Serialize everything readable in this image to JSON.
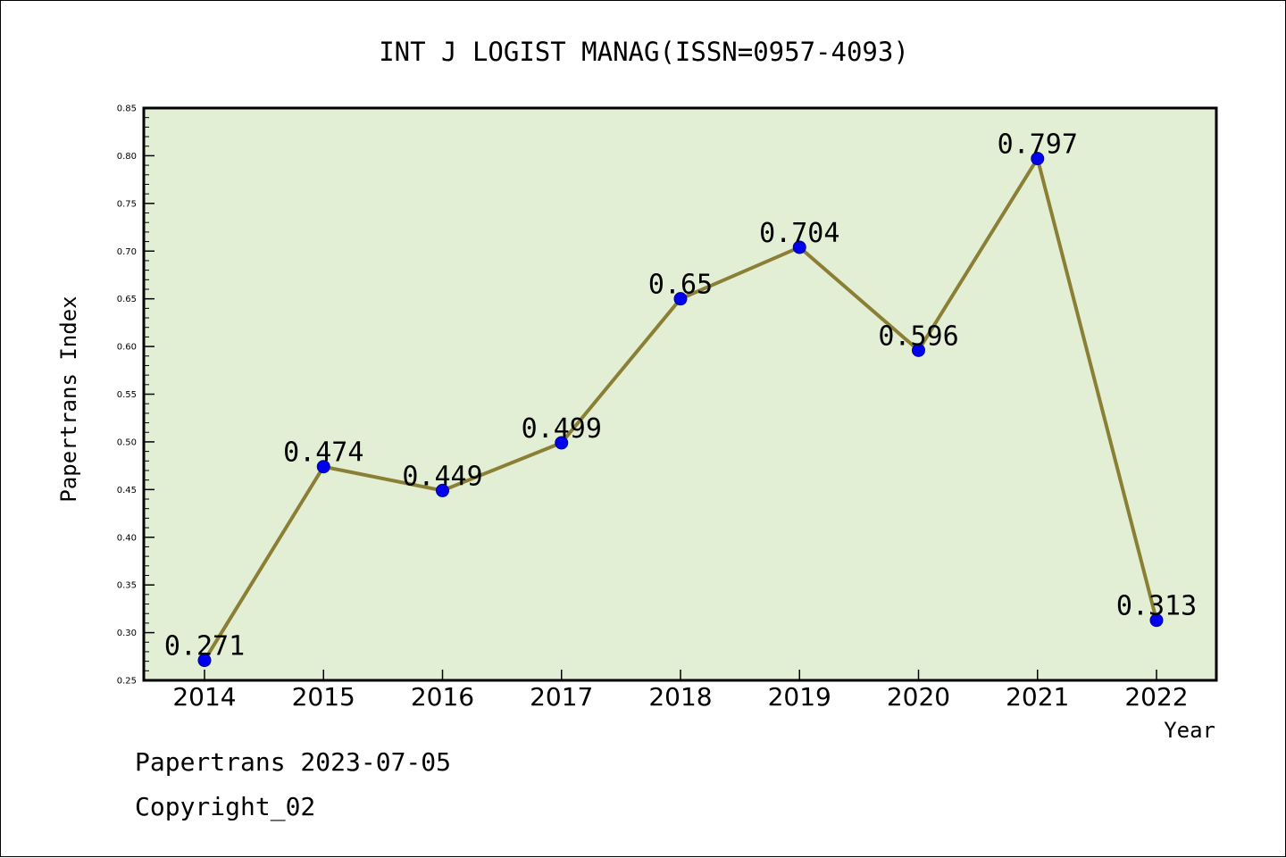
{
  "chart_data": {
    "type": "line",
    "title": "INT J LOGIST MANAG(ISSN=0957-4093)",
    "xlabel": "Year",
    "ylabel": "Papertrans Index",
    "categories": [
      "2014",
      "2015",
      "2016",
      "2017",
      "2018",
      "2019",
      "2020",
      "2021",
      "2022"
    ],
    "series": [
      {
        "values": [
          0.271,
          0.474,
          0.449,
          0.499,
          0.65,
          0.704,
          0.596,
          0.797,
          0.313
        ],
        "labels": [
          "0.271",
          "0.474",
          "0.449",
          "0.499",
          "0.65",
          "0.704",
          "0.596",
          "0.797",
          "0.313"
        ]
      }
    ],
    "ylim": [
      0.25,
      0.85
    ],
    "yticks": [
      "0.25",
      "0.30",
      "0.35",
      "0.40",
      "0.45",
      "0.50",
      "0.55",
      "0.60",
      "0.65",
      "0.70",
      "0.75",
      "0.80",
      "0.85"
    ],
    "colors": {
      "plot_background": "#e2efd4",
      "line": "#8b7f36",
      "marker": "#0000ee",
      "axis": "#000000"
    },
    "grid": false,
    "legend": "none"
  },
  "footer": {
    "line1": "Papertrans 2023-07-05",
    "line2": "Copyright_02"
  }
}
